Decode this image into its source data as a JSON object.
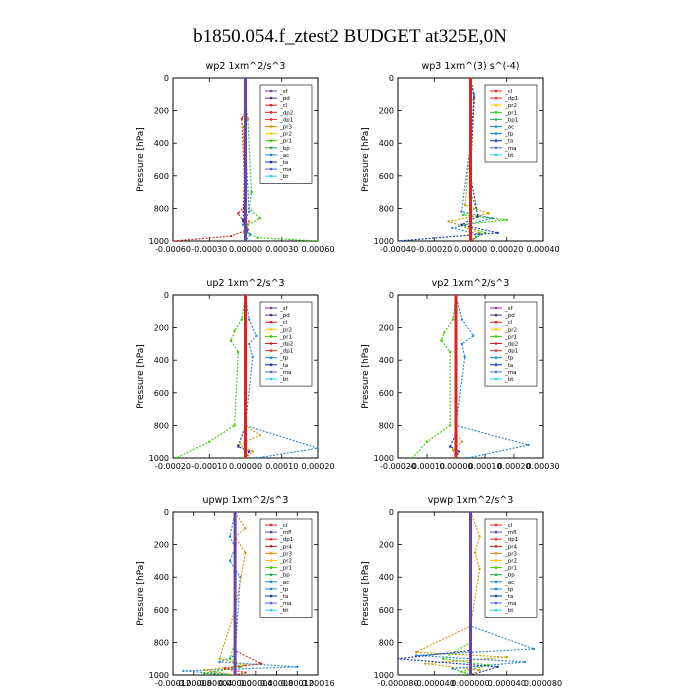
{
  "figure": {
    "title": "b1850.054.f_ztest2  BUDGET at325E,0N"
  },
  "chart_data": [
    {
      "type": "line",
      "title": "wp2   1xm^2/s^3",
      "ylabel": "Pressure [hPa]",
      "xlim": [
        -0.0006,
        0.0006
      ],
      "ylim": [
        1000,
        0
      ],
      "x_ticks": [
        "-0.00060",
        "-0.00030",
        "0.00000",
        "0.00030",
        "0.00060"
      ],
      "x_tick_values": [
        -0.0006,
        -0.0003,
        0,
        0.0003,
        0.0006
      ],
      "y_ticks": [
        0,
        200,
        400,
        600,
        800,
        1000
      ],
      "legend": [
        "_sf",
        "_pd",
        "_cl",
        "_dp2",
        "_dp1",
        "_pr3",
        "_pr2",
        "_pr1",
        "_bp",
        "_ac",
        "_ta",
        "_ma",
        "_bt"
      ],
      "series": [
        {
          "name": "_pr1",
          "color": "#33cc00",
          "x": [
            0,
            0,
            2e-05,
            5e-05,
            3e-05,
            0.00012,
            2e-05,
            1e-05,
            0.0001,
            0.0006
          ],
          "y": [
            0,
            150,
            250,
            700,
            800,
            860,
            900,
            950,
            980,
            1000
          ]
        },
        {
          "name": "_dp2",
          "color": "#dd2222",
          "x": [
            0,
            0,
            -3e-05,
            0,
            -6e-05,
            -2e-05,
            2e-05,
            -0.00012,
            -0.0006
          ],
          "y": [
            0,
            200,
            250,
            780,
            830,
            880,
            930,
            970,
            1000
          ]
        },
        {
          "name": "_dp1",
          "color": "#ee7700",
          "x": [
            0,
            0,
            -2e-05,
            3e-05,
            -1e-05,
            0
          ],
          "y": [
            0,
            300,
            820,
            880,
            950,
            1000
          ]
        },
        {
          "name": "_pr2",
          "color": "#cc9900",
          "x": [
            0,
            0,
            2e-05,
            -2e-05,
            1e-05,
            0
          ],
          "y": [
            0,
            200,
            250,
            300,
            900,
            1000
          ]
        },
        {
          "name": "_bp",
          "color": "#2288cc",
          "x": [
            0,
            0,
            3e-05,
            -2e-05,
            4e-05,
            0
          ],
          "y": [
            0,
            400,
            820,
            900,
            960,
            1000
          ]
        },
        {
          "name": "_ta",
          "color": "#1133aa",
          "x": [
            0,
            0,
            -2e-05,
            1e-05,
            0
          ],
          "y": [
            0,
            600,
            870,
            940,
            1000
          ]
        },
        {
          "name": "_bt",
          "color": "#6644aa",
          "x": [
            0,
            0
          ],
          "y": [
            0,
            1000
          ]
        }
      ]
    },
    {
      "type": "line",
      "title": "wp3   1xm^(3) s^(-4)",
      "ylabel": "Pressure [hPa]",
      "xlim": [
        -0.0004,
        0.0004
      ],
      "ylim": [
        1000,
        0
      ],
      "x_ticks": [
        "-0.00040",
        "-0.00020",
        "0.00000",
        "0.00020",
        "0.00040"
      ],
      "x_tick_values": [
        -0.0004,
        -0.0002,
        0,
        0.0002,
        0.0004
      ],
      "y_ticks": [
        0,
        200,
        400,
        600,
        800,
        1000
      ],
      "legend": [
        "_cl",
        "_dp1",
        "_pr2",
        "_pr1",
        "_bp1",
        "_ac",
        "_tp",
        "_ta",
        "_ma",
        "_bt"
      ],
      "series": [
        {
          "name": "_pr1",
          "color": "#33cc00",
          "x": [
            0,
            0,
            3e-05,
            -4e-05,
            0.0002,
            -5e-05,
            8e-05,
            0
          ],
          "y": [
            0,
            700,
            800,
            840,
            870,
            900,
            950,
            1000
          ]
        },
        {
          "name": "_pr2",
          "color": "#cc9900",
          "x": [
            0,
            0,
            2e-05,
            -3e-05,
            0.0001,
            -0.00012,
            5e-05,
            0
          ],
          "y": [
            0,
            100,
            150,
            780,
            830,
            880,
            950,
            1000
          ]
        },
        {
          "name": "_bp1",
          "color": "#2288cc",
          "x": [
            0,
            2e-05,
            0,
            -5e-05,
            0.00012,
            -0.0001,
            5e-05,
            0
          ],
          "y": [
            0,
            100,
            400,
            820,
            860,
            920,
            960,
            1000
          ]
        },
        {
          "name": "_ta",
          "color": "#1133aa",
          "x": [
            0,
            2e-05,
            0,
            4e-05,
            -5e-05,
            0.00015,
            -0.0004
          ],
          "y": [
            0,
            120,
            600,
            850,
            900,
            950,
            1000
          ]
        },
        {
          "name": "_cl",
          "color": "#dd2222",
          "x": [
            0,
            0
          ],
          "y": [
            0,
            1000
          ]
        }
      ]
    },
    {
      "type": "line",
      "title": "up2   1xm^2/s^3",
      "ylabel": "Pressure [hPa]",
      "xlim": [
        -0.0002,
        0.0002
      ],
      "ylim": [
        1000,
        0
      ],
      "x_ticks": [
        "-0.00020",
        "-0.00010",
        "0.00000",
        "0.00010",
        "0.00020"
      ],
      "x_tick_values": [
        -0.0002,
        -0.0001,
        0,
        0.0001,
        0.0002
      ],
      "y_ticks": [
        0,
        200,
        400,
        600,
        800,
        1000
      ],
      "legend": [
        "_sf",
        "_pd",
        "_cl",
        "_pr2",
        "_pr1",
        "_dp2",
        "_dp1",
        "_tp",
        "_ta",
        "_ma",
        "_bt"
      ],
      "series": [
        {
          "name": "_pr1",
          "color": "#33cc00",
          "x": [
            0,
            -1e-05,
            -3e-05,
            -4e-05,
            -2e-05,
            -3e-05,
            -0.0001,
            -0.00019
          ],
          "y": [
            0,
            150,
            220,
            280,
            350,
            800,
            900,
            1000
          ]
        },
        {
          "name": "_tp",
          "color": "#2288cc",
          "x": [
            0,
            1e-05,
            3e-05,
            1e-05,
            2e-05,
            0,
            0.0002,
            3e-05
          ],
          "y": [
            0,
            150,
            250,
            300,
            380,
            800,
            940,
            1000
          ]
        },
        {
          "name": "_pr2",
          "color": "#cc9900",
          "x": [
            0,
            0,
            4e-05,
            -2e-05,
            2e-05,
            0
          ],
          "y": [
            0,
            800,
            860,
            920,
            960,
            1000
          ]
        },
        {
          "name": "_dp1",
          "color": "#1133aa",
          "x": [
            0,
            0,
            -2e-05,
            1e-05,
            0
          ],
          "y": [
            0,
            800,
            930,
            960,
            1000
          ]
        },
        {
          "name": "_cl",
          "color": "#dd2222",
          "x": [
            0,
            0
          ],
          "y": [
            0,
            1000
          ]
        }
      ]
    },
    {
      "type": "line",
      "title": "vp2   1xm^2/s^3",
      "ylabel": "Pressure [hPa]",
      "xlim": [
        -0.0002,
        0.0003
      ],
      "ylim": [
        1000,
        0
      ],
      "x_ticks": [
        "-0.00020",
        "-0.00010",
        "0.00000",
        "0.00010",
        "0.00020",
        "0.00030"
      ],
      "x_tick_values": [
        -0.0002,
        -0.0001,
        0,
        0.0001,
        0.0002,
        0.0003
      ],
      "y_ticks": [
        0,
        200,
        400,
        600,
        800,
        1000
      ],
      "legend": [
        "_sf",
        "_pd",
        "_cl",
        "_pr2",
        "_pr1",
        "_dp2",
        "_dp1",
        "_tp",
        "_ta",
        "_ma",
        "_bt"
      ],
      "series": [
        {
          "name": "_pr1",
          "color": "#33cc00",
          "x": [
            0,
            -1e-05,
            -4e-05,
            -5e-05,
            -2e-05,
            -2e-05,
            -0.0001,
            -0.00015
          ],
          "y": [
            0,
            150,
            230,
            280,
            350,
            800,
            900,
            1000
          ]
        },
        {
          "name": "_tp",
          "color": "#2288cc",
          "x": [
            0,
            2e-05,
            6e-05,
            2e-05,
            3e-05,
            0,
            0.00025,
            4e-05
          ],
          "y": [
            0,
            150,
            250,
            300,
            380,
            800,
            920,
            1000
          ]
        },
        {
          "name": "_pr2",
          "color": "#cc9900",
          "x": [
            0,
            0,
            2e-05,
            -1e-05,
            0
          ],
          "y": [
            0,
            850,
            900,
            950,
            1000
          ]
        },
        {
          "name": "_dp1",
          "color": "#1133aa",
          "x": [
            0,
            0,
            -2e-05,
            1e-05,
            0
          ],
          "y": [
            0,
            850,
            930,
            960,
            1000
          ]
        },
        {
          "name": "_cl",
          "color": "#dd2222",
          "x": [
            0,
            0
          ],
          "y": [
            0,
            1000
          ]
        }
      ]
    },
    {
      "type": "line",
      "title": "upwp   1xm^2/s^3",
      "ylabel": "Pressure [hPa]",
      "xlim": [
        -0.00012,
        0.00016
      ],
      "ylim": [
        1000,
        0
      ],
      "x_ticks": [
        "-0.00012",
        "-0.00008",
        "-0.00004",
        "0.00000",
        "0.00004",
        "0.00008",
        "0.00012",
        "0.00016"
      ],
      "x_tick_values": [
        -0.00012,
        -8e-05,
        -4e-05,
        0,
        4e-05,
        8e-05,
        0.00012,
        0.00016
      ],
      "y_ticks": [
        0,
        200,
        400,
        600,
        800,
        1000
      ],
      "legend": [
        "_cl",
        "_mfl",
        "_dp1",
        "_pr4",
        "_pr3",
        "_pr2",
        "_pr1",
        "_bp",
        "_ac",
        "_tp",
        "_ta",
        "_ma",
        "_bt"
      ],
      "series": [
        {
          "name": "_tp",
          "color": "#2288cc",
          "x": [
            0,
            -1e-05,
            0,
            -1e-05,
            1e-05,
            0,
            -3e-05,
            0.00012,
            -0.0001,
            0
          ],
          "y": [
            0,
            150,
            220,
            300,
            400,
            880,
            920,
            950,
            975,
            1000
          ]
        },
        {
          "name": "_pr2",
          "color": "#cc9900",
          "x": [
            0,
            2e-05,
            0,
            2e-05,
            0,
            -3e-05,
            2e-05,
            -6e-05,
            0
          ],
          "y": [
            0,
            100,
            150,
            250,
            600,
            900,
            940,
            970,
            1000
          ]
        },
        {
          "name": "_pr1",
          "color": "#33cc00",
          "x": [
            0,
            0,
            -1e-05,
            1e-05,
            -6e-05,
            0
          ],
          "y": [
            0,
            800,
            900,
            950,
            990,
            1000
          ]
        },
        {
          "name": "_dp1",
          "color": "#dd2222",
          "x": [
            0,
            0,
            5e-05,
            -2e-05,
            2e-05,
            0
          ],
          "y": [
            0,
            850,
            930,
            960,
            985,
            1000
          ]
        },
        {
          "name": "_mfl",
          "color": "#6644aa",
          "x": [
            0,
            0
          ],
          "y": [
            0,
            1000
          ]
        }
      ]
    },
    {
      "type": "line",
      "title": "vpwp   1xm^2/s^3",
      "ylabel": "Pressure [hPa]",
      "xlim": [
        -8e-05,
        8e-05
      ],
      "ylim": [
        1000,
        0
      ],
      "x_ticks": [
        "-0.000080",
        "-0.000040",
        "0.000000",
        "0.000040",
        "0.000080"
      ],
      "x_tick_values": [
        -8e-05,
        -4e-05,
        0,
        4e-05,
        8e-05
      ],
      "y_ticks": [
        0,
        200,
        400,
        600,
        800,
        1000
      ],
      "legend": [
        "_cl",
        "_mfl",
        "_dp1",
        "_pr4",
        "_pr3",
        "_pr2",
        "_pr1",
        "_bp",
        "_ac",
        "_tp",
        "_ta",
        "_ma",
        "_bt"
      ],
      "series": [
        {
          "name": "_pr2",
          "color": "#cc9900",
          "x": [
            0,
            1e-05,
            5e-06,
            1e-05,
            0,
            -6e-05,
            4e-05,
            -5e-05,
            1e-05,
            0
          ],
          "y": [
            0,
            150,
            250,
            350,
            700,
            860,
            890,
            930,
            970,
            1000
          ]
        },
        {
          "name": "_tp",
          "color": "#2288cc",
          "x": [
            0,
            0,
            7e-05,
            -6e-05,
            6e-05,
            -2e-05,
            0
          ],
          "y": [
            0,
            700,
            840,
            880,
            920,
            960,
            1000
          ]
        },
        {
          "name": "_pr1",
          "color": "#33cc00",
          "x": [
            0,
            0,
            -3e-05,
            2e-05,
            -1e-05,
            0
          ],
          "y": [
            0,
            800,
            900,
            940,
            980,
            1000
          ]
        },
        {
          "name": "_ta",
          "color": "#1133aa",
          "x": [
            0,
            0,
            -8e-05,
            3e-05,
            0
          ],
          "y": [
            0,
            850,
            900,
            950,
            1000
          ]
        },
        {
          "name": "_cl",
          "color": "#dd2222",
          "x": [
            0,
            0
          ],
          "y": [
            0,
            1000
          ]
        },
        {
          "name": "_mfl",
          "color": "#6644aa",
          "x": [
            0,
            0
          ],
          "y": [
            0,
            1000
          ]
        }
      ]
    }
  ],
  "legend_colors": {
    "_sf": "#7a3d99",
    "_pd": "#5a2d88",
    "_cl": "#dd2222",
    "_mfl": "#6644aa",
    "_dp2": "#cc1f1f",
    "_dp1": "#ee3333",
    "_pr4": "#bb2222",
    "_pr3": "#ff8800",
    "_pr2": "#ffcc00",
    "_pr1": "#33cc00",
    "_bp": "#22aa55",
    "_bp1": "#22aa55",
    "_ac": "#2288cc",
    "_tp": "#2288cc",
    "_ta": "#1133aa",
    "_ma": "#5566dd",
    "_bt": "#33ccee"
  }
}
